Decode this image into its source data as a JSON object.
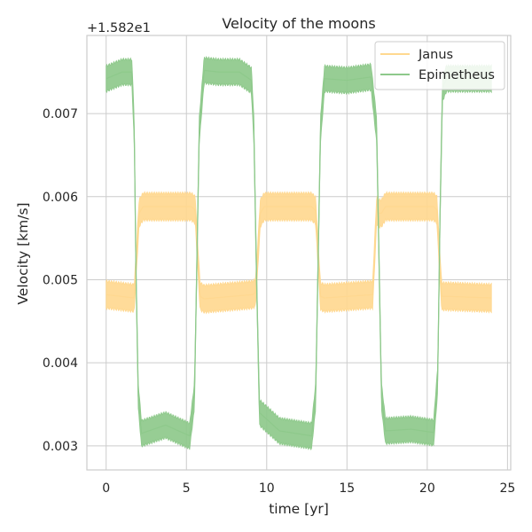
{
  "chart_data": {
    "type": "line",
    "title": "Velocity of the moons",
    "xlabel": "time [yr]",
    "ylabel": "Velocity [km/s]",
    "offset_label": "+1.582e1",
    "xlim": [
      -1.2,
      25.2
    ],
    "ylim": [
      0.00271,
      0.00794
    ],
    "xticks": [
      0,
      5,
      10,
      15,
      20,
      25
    ],
    "xtick_labels": [
      "0",
      "5",
      "10",
      "15",
      "20",
      "25"
    ],
    "yticks": [
      0.003,
      0.004,
      0.005,
      0.006,
      0.007
    ],
    "ytick_labels": [
      "0.003",
      "0.004",
      "0.005",
      "0.006",
      "0.007"
    ],
    "grid": true,
    "legend_position": "top-right",
    "series": [
      {
        "name": "Janus",
        "color": "#ffd890",
        "band_half_width": 0.00017,
        "x": [
          0.0,
          1.75,
          1.9,
          2.05,
          2.3,
          5.3,
          5.55,
          5.7,
          5.85,
          6.1,
          9.1,
          9.3,
          9.45,
          9.6,
          9.85,
          12.8,
          13.05,
          13.2,
          13.35,
          13.6,
          16.6,
          16.85,
          17.0,
          17.15,
          17.4,
          20.4,
          20.6,
          20.75,
          20.9,
          21.15,
          24.0
        ],
        "values": [
          0.00482,
          0.00478,
          0.0053,
          0.0058,
          0.00588,
          0.00588,
          0.00584,
          0.0053,
          0.0048,
          0.00477,
          0.00482,
          0.00484,
          0.0053,
          0.0058,
          0.00588,
          0.00588,
          0.00583,
          0.0053,
          0.0048,
          0.00478,
          0.00482,
          0.00584,
          0.0058,
          0.0058,
          0.00588,
          0.00588,
          0.00584,
          0.0053,
          0.0048,
          0.0048,
          0.00478
        ]
      },
      {
        "name": "Epimetheus",
        "color": "#8ec98b",
        "band_half_width": 0.00016,
        "x": [
          0.0,
          1.0,
          1.6,
          1.75,
          1.85,
          2.0,
          2.2,
          3.7,
          5.2,
          5.5,
          5.65,
          5.8,
          6.1,
          7.0,
          8.3,
          9.05,
          9.2,
          9.35,
          9.55,
          10.8,
          12.8,
          13.05,
          13.2,
          13.35,
          13.6,
          15.0,
          16.5,
          16.85,
          17.0,
          17.15,
          17.4,
          19.0,
          20.4,
          20.65,
          20.8,
          20.95,
          21.2,
          24.0
        ],
        "values": [
          0.00742,
          0.0075,
          0.0075,
          0.0068,
          0.0052,
          0.0036,
          0.00315,
          0.00325,
          0.00312,
          0.0036,
          0.0052,
          0.0068,
          0.00752,
          0.0075,
          0.0075,
          0.0074,
          0.0068,
          0.0052,
          0.0034,
          0.00318,
          0.00312,
          0.0036,
          0.0052,
          0.0068,
          0.00742,
          0.0074,
          0.00744,
          0.0068,
          0.0052,
          0.0036,
          0.00318,
          0.0032,
          0.00316,
          0.0038,
          0.0058,
          0.0073,
          0.00742,
          0.00742
        ]
      }
    ]
  }
}
